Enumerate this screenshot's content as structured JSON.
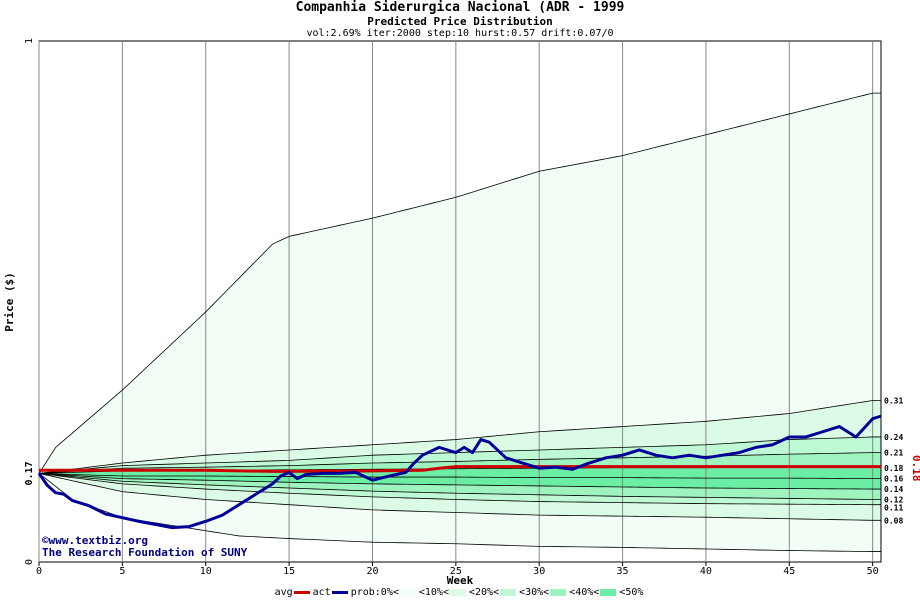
{
  "chart_data": {
    "type": "line",
    "title": "Companhia Siderurgica Nacional (ADR - 1999",
    "subtitle": "Predicted Price Distribution",
    "params": "vol:2.69% iter:2000 step:10 hurst:0.57 drift:0.07/0",
    "xlabel": "Week",
    "ylabel": "Price ($)",
    "xlim": [
      0,
      50.5
    ],
    "ylim": [
      0,
      1
    ],
    "x_ticks": [
      "0",
      "5",
      "10",
      "15",
      "20",
      "25",
      "30",
      "35",
      "40",
      "45",
      "50"
    ],
    "y_ticks": [
      "0",
      "1"
    ],
    "start_label": "0.17",
    "last_label": "0.18",
    "right_labels": [
      "0.31",
      "0.24",
      "0.21",
      "0.18",
      "0.16",
      "0.14",
      "0.12",
      "0.11",
      "0.08"
    ],
    "band_boundaries": [
      {
        "x": [
          0,
          1,
          5,
          10,
          14,
          15,
          20,
          25,
          30,
          35,
          40,
          45,
          50,
          50.5
        ],
        "y": [
          0.17,
          0.22,
          0.33,
          0.48,
          0.61,
          0.625,
          0.66,
          0.7,
          0.75,
          0.78,
          0.82,
          0.86,
          0.9,
          0.9
        ]
      },
      {
        "x": [
          0,
          5,
          10,
          15,
          20,
          25,
          30,
          35,
          40,
          45,
          50,
          50.5
        ],
        "y": [
          0.17,
          0.19,
          0.205,
          0.215,
          0.225,
          0.235,
          0.25,
          0.26,
          0.27,
          0.285,
          0.31,
          0.31
        ]
      },
      {
        "x": [
          0,
          5,
          10,
          15,
          20,
          25,
          30,
          35,
          40,
          45,
          50,
          50.5
        ],
        "y": [
          0.17,
          0.185,
          0.19,
          0.195,
          0.205,
          0.21,
          0.215,
          0.22,
          0.225,
          0.235,
          0.24,
          0.24
        ]
      },
      {
        "x": [
          0,
          5,
          10,
          15,
          20,
          25,
          30,
          35,
          40,
          45,
          50,
          50.5
        ],
        "y": [
          0.17,
          0.18,
          0.182,
          0.185,
          0.19,
          0.193,
          0.197,
          0.2,
          0.203,
          0.207,
          0.21,
          0.21
        ]
      },
      {
        "x": [
          0,
          5,
          10,
          15,
          20,
          25,
          30,
          35,
          40,
          45,
          50,
          50.5
        ],
        "y": [
          0.17,
          0.175,
          0.176,
          0.177,
          0.178,
          0.179,
          0.18,
          0.181,
          0.181,
          0.182,
          0.183,
          0.183
        ]
      },
      {
        "x": [
          0,
          5,
          10,
          15,
          20,
          25,
          30,
          35,
          40,
          45,
          50,
          50.5
        ],
        "y": [
          0.17,
          0.165,
          0.165,
          0.164,
          0.163,
          0.163,
          0.162,
          0.162,
          0.161,
          0.161,
          0.16,
          0.16
        ]
      },
      {
        "x": [
          0,
          5,
          10,
          15,
          20,
          25,
          30,
          35,
          40,
          45,
          50,
          50.5
        ],
        "y": [
          0.17,
          0.16,
          0.157,
          0.153,
          0.15,
          0.148,
          0.146,
          0.144,
          0.142,
          0.141,
          0.14,
          0.14
        ]
      },
      {
        "x": [
          0,
          5,
          10,
          15,
          20,
          25,
          30,
          35,
          40,
          45,
          50,
          50.5
        ],
        "y": [
          0.17,
          0.155,
          0.148,
          0.142,
          0.136,
          0.132,
          0.129,
          0.126,
          0.124,
          0.122,
          0.12,
          0.12
        ]
      },
      {
        "x": [
          0,
          5,
          10,
          15,
          20,
          25,
          30,
          35,
          40,
          45,
          50,
          50.5
        ],
        "y": [
          0.17,
          0.15,
          0.14,
          0.132,
          0.125,
          0.12,
          0.116,
          0.114,
          0.112,
          0.111,
          0.11,
          0.11
        ]
      },
      {
        "x": [
          0,
          5,
          10,
          15,
          20,
          25,
          30,
          35,
          40,
          45,
          50,
          50.5
        ],
        "y": [
          0.17,
          0.135,
          0.12,
          0.11,
          0.1,
          0.095,
          0.09,
          0.088,
          0.086,
          0.083,
          0.08,
          0.08
        ]
      },
      {
        "x": [
          0,
          2,
          5,
          8,
          10,
          12,
          15,
          20,
          25,
          30,
          35,
          40,
          45,
          50,
          50.5
        ],
        "y": [
          0.17,
          0.12,
          0.085,
          0.07,
          0.06,
          0.05,
          0.045,
          0.038,
          0.035,
          0.03,
          0.028,
          0.025,
          0.022,
          0.02,
          0.02
        ]
      }
    ],
    "series": [
      {
        "name": "avg",
        "color": "#cc0000",
        "x": [
          0,
          10,
          14,
          20,
          23,
          24,
          25,
          30,
          35,
          40,
          45,
          50,
          50.5
        ],
        "y": [
          0.176,
          0.176,
          0.174,
          0.175,
          0.176,
          0.18,
          0.183,
          0.183,
          0.183,
          0.183,
          0.183,
          0.183,
          0.183
        ]
      },
      {
        "name": "act",
        "color": "#000099",
        "x": [
          0,
          0.5,
          1,
          1.5,
          2,
          3,
          3.5,
          4,
          5,
          6,
          7,
          8,
          9,
          10,
          11,
          12,
          13,
          14,
          14.5,
          15,
          15.5,
          16,
          17,
          18,
          19,
          20,
          21,
          22,
          22.5,
          23,
          24,
          25,
          25.5,
          26,
          26.5,
          27,
          28,
          29,
          30,
          31,
          32,
          33,
          34,
          35,
          36,
          37,
          38,
          39,
          40,
          41,
          42,
          43,
          44,
          45,
          46,
          47,
          48,
          49,
          50,
          50.5
        ],
        "y": [
          0.17,
          0.147,
          0.133,
          0.13,
          0.118,
          0.108,
          0.1,
          0.092,
          0.085,
          0.078,
          0.072,
          0.066,
          0.068,
          0.078,
          0.09,
          0.11,
          0.13,
          0.15,
          0.165,
          0.172,
          0.16,
          0.168,
          0.17,
          0.17,
          0.172,
          0.157,
          0.165,
          0.172,
          0.19,
          0.205,
          0.22,
          0.21,
          0.22,
          0.21,
          0.235,
          0.23,
          0.2,
          0.19,
          0.18,
          0.182,
          0.178,
          0.19,
          0.2,
          0.205,
          0.215,
          0.205,
          0.2,
          0.205,
          0.2,
          0.205,
          0.21,
          0.22,
          0.225,
          0.24,
          0.24,
          0.25,
          0.26,
          0.24,
          0.275,
          0.28
        ]
      }
    ],
    "band_colors": [
      "#f2fdf5",
      "#dbfbe6",
      "#bff8d4",
      "#9ff3bf",
      "#6beea3"
    ],
    "credit": [
      "©www.textbiz.org",
      "The Research Foundation of SUNY"
    ],
    "legend": [
      {
        "label": "avg",
        "kind": "line",
        "color": "#cc0000"
      },
      {
        "label": "act",
        "kind": "line",
        "color": "#000099"
      },
      {
        "label": "prob:0%<",
        "kind": "box",
        "color": "#f2fdf5"
      },
      {
        "label": "<10%<",
        "kind": "box",
        "color": "#dbfbe6"
      },
      {
        "label": "<20%<",
        "kind": "box",
        "color": "#bff8d4"
      },
      {
        "label": "<30%<",
        "kind": "box",
        "color": "#9ff3bf"
      },
      {
        "label": "<40%<",
        "kind": "box",
        "color": "#6beea3"
      },
      {
        "label": "<50%",
        "kind": "none",
        "color": ""
      }
    ]
  }
}
